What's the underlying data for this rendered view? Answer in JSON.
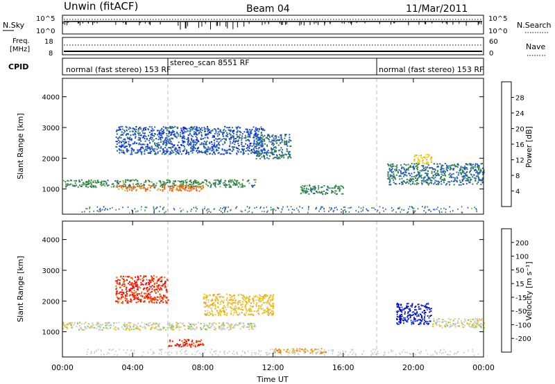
{
  "header": {
    "title": "Unwin (fitACF)",
    "beam": "Beam 04",
    "date": "11/Mar/2011"
  },
  "noise_panel": {
    "left_label": "N.Sky",
    "right_label": "N.Search",
    "left_ticks": [
      "10^5",
      "10^0"
    ],
    "right_ticks": [
      "10^5",
      "10^0"
    ]
  },
  "freq_panel": {
    "left_label_1": "Freq.",
    "left_label_2": "[MHz]",
    "right_label": "Nave",
    "left_ticks": [
      "18",
      "8"
    ],
    "right_ticks": [
      "60",
      "0"
    ]
  },
  "cpid_panel": {
    "label": "CPID",
    "segments": [
      {
        "text": "normal (fast stereo) 153 RF",
        "start_hour": 0
      },
      {
        "text": "stereo_scan 8551 RF",
        "start_hour": 6
      },
      {
        "text": "normal (fast stereo) 153 RF",
        "start_hour": 18
      }
    ]
  },
  "axes": {
    "xlabel": "Time UT",
    "ylabel": "Slant Range [km]",
    "x_ticks": [
      "00:00",
      "04:00",
      "08:00",
      "12:00",
      "16:00",
      "20:00",
      "00:00"
    ],
    "y_ticks": [
      "1000",
      "2000",
      "3000",
      "4000"
    ],
    "xlim_hours": [
      0,
      24
    ],
    "ylim_km": [
      180,
      4600
    ]
  },
  "power_colorbar": {
    "label": "Power [dB]",
    "ticks": [
      "28",
      "24",
      "20",
      "16",
      "12",
      "8",
      "4"
    ],
    "colors": [
      "#0000ff",
      "#1e4fd8",
      "#2a7f4a",
      "#6ab04c",
      "#f0d010",
      "#f3a51a",
      "#f06414",
      "#e02020"
    ]
  },
  "velocity_colorbar": {
    "label": "Velocity [m s⁻¹]",
    "ticks": [
      "200",
      "100",
      "50",
      "15",
      "-15",
      "-50",
      "-100",
      "-200"
    ],
    "colors": [
      "#ff0000",
      "#f25c00",
      "#f39c12",
      "#f1c40f",
      "#c8c8c8",
      "#7ac943",
      "#3a7fd6",
      "#1a3fcf",
      "#0000cc"
    ]
  },
  "chart_data": {
    "type": "heatmap",
    "title": "Unwin (fitACF)",
    "xlabel": "Time UT",
    "ylabel": "Slant Range [km]",
    "xlim": [
      0,
      24
    ],
    "ylim": [
      180,
      4600
    ],
    "panels": [
      {
        "name": "Power [dB]",
        "clim": [
          0,
          30
        ],
        "regions": [
          {
            "x": [
              0,
              11
            ],
            "range_center_km": 1200,
            "range_width_km": 250,
            "value": 10
          },
          {
            "x": [
              3,
              8
            ],
            "range_center_km": 1050,
            "range_width_km": 200,
            "value": 24
          },
          {
            "x": [
              3,
              11.5
            ],
            "range_center_km": 2600,
            "range_width_km": 900,
            "value": 6
          },
          {
            "x": [
              11,
              13
            ],
            "range_center_km": 2400,
            "range_width_km": 800,
            "value": 8
          },
          {
            "x": [
              13.5,
              16
            ],
            "range_center_km": 1000,
            "range_width_km": 300,
            "value": 10
          },
          {
            "x": [
              18.5,
              24
            ],
            "range_center_km": 1500,
            "range_width_km": 700,
            "value": 8
          },
          {
            "x": [
              20,
              21
            ],
            "range_center_km": 2000,
            "range_width_km": 300,
            "value": 18
          }
        ]
      },
      {
        "name": "Velocity [m s-1]",
        "clim": [
          -250,
          250
        ],
        "regions": [
          {
            "x": [
              0,
              11
            ],
            "range_center_km": 1200,
            "range_width_km": 250,
            "value": 0
          },
          {
            "x": [
              3,
              6
            ],
            "range_center_km": 2400,
            "range_width_km": 900,
            "value": -200
          },
          {
            "x": [
              6,
              8
            ],
            "range_center_km": 650,
            "range_width_km": 250,
            "value": -200
          },
          {
            "x": [
              8,
              12
            ],
            "range_center_km": 1900,
            "range_width_km": 700,
            "value": -60
          },
          {
            "x": [
              12,
              15
            ],
            "range_center_km": 400,
            "range_width_km": 150,
            "value": -120
          },
          {
            "x": [
              19,
              21
            ],
            "range_center_km": 1600,
            "range_width_km": 700,
            "value": 200
          },
          {
            "x": [
              21,
              24
            ],
            "range_center_km": 1300,
            "range_width_km": 300,
            "value": 0
          }
        ]
      }
    ]
  }
}
